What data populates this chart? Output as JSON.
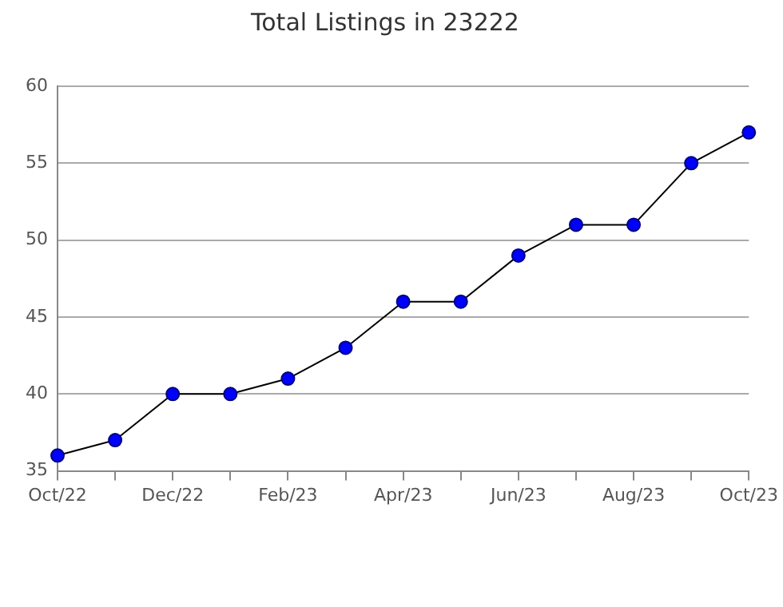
{
  "chart_data": {
    "type": "line",
    "title": "Total Listings in 23222",
    "categories": [
      "Oct/22",
      null,
      "Dec/22",
      null,
      "Feb/23",
      null,
      "Apr/23",
      null,
      "Jun/23",
      null,
      "Aug/23",
      null,
      "Oct/23"
    ],
    "series": [
      {
        "color": "#0000ff",
        "values": [
          36,
          37,
          40,
          40,
          41,
          43,
          46,
          46,
          49,
          51,
          51,
          55,
          57
        ]
      }
    ],
    "ylim": [
      35,
      60
    ],
    "yticks": [
      35,
      40,
      45,
      50,
      55,
      60
    ],
    "grid": "y",
    "legend": false,
    "marker": "circle",
    "line_style": "solid"
  }
}
